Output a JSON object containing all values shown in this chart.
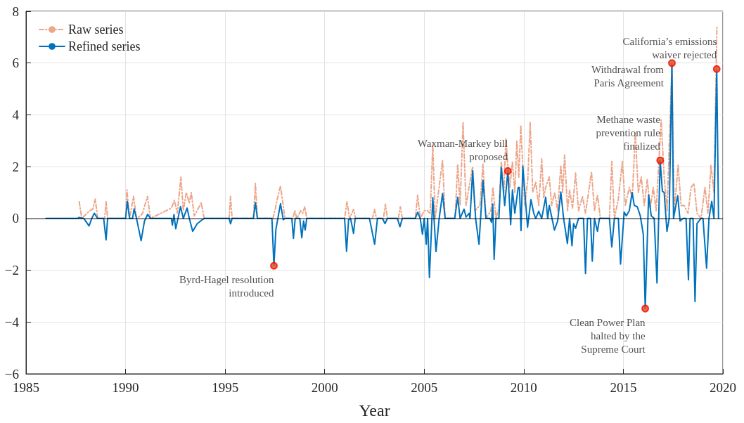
{
  "chart_data": {
    "type": "line",
    "xlabel": "Year",
    "xlim": [
      1985,
      2020
    ],
    "xticks": [
      1985,
      1990,
      1995,
      2000,
      2005,
      2010,
      2015,
      2020
    ],
    "ylim": [
      -6,
      8
    ],
    "yticks": [
      -6,
      -4,
      -2,
      0,
      2,
      4,
      6,
      8
    ],
    "grid": true,
    "legend": "top left",
    "marker": "none",
    "ref_lines": [
      {
        "axis": "y",
        "value": 0,
        "label": null,
        "color": "#000000"
      }
    ],
    "series": [
      {
        "name": "Raw series",
        "color": "#eca68a",
        "line_style": "dashdot",
        "x": [
          1987.67,
          1987.8,
          1988.2,
          1988.35,
          1988.48,
          1988.6,
          1988.95,
          1989.02,
          1989.1,
          1990.0,
          1990.07,
          1990.2,
          1990.4,
          1990.55,
          1990.75,
          1990.85,
          1991.1,
          1991.25,
          1992.3,
          1992.45,
          1992.6,
          1992.78,
          1992.9,
          1993.05,
          1993.2,
          1993.3,
          1993.45,
          1993.8,
          1993.95,
          1995.2,
          1995.27,
          1995.35,
          1996.42,
          1996.52,
          1996.62,
          1997.4,
          1997.5,
          1997.62,
          1997.78,
          1997.9,
          1998.0,
          1998.4,
          1998.5,
          1998.6,
          1998.8,
          1998.9,
          1999.0,
          1999.1,
          2001.0,
          2001.12,
          2001.25,
          2001.45,
          2001.55,
          2002.4,
          2002.5,
          2002.6,
          2002.95,
          2003.05,
          2003.15,
          2003.7,
          2003.8,
          2003.9,
          2004.55,
          2004.67,
          2004.8,
          2005.0,
          2005.15,
          2005.3,
          2005.43,
          2005.55,
          2005.92,
          2006.05,
          2006.55,
          2006.68,
          2006.8,
          2006.95,
          2007.1,
          2007.25,
          2007.43,
          2007.55,
          2007.8,
          2007.95,
          2008.1,
          2008.35,
          2008.45,
          2008.6,
          2008.75,
          2008.87,
          2009.0,
          2009.1,
          2009.2,
          2009.3,
          2009.43,
          2009.55,
          2009.65,
          2009.75,
          2009.85,
          2009.95,
          2010.05,
          2010.2,
          2010.32,
          2010.45,
          2010.6,
          2010.75,
          2010.9,
          2011.0,
          2011.1,
          2011.28,
          2011.4,
          2011.55,
          2011.7,
          2011.86,
          2011.95,
          2012.05,
          2012.2,
          2012.3,
          2012.45,
          2012.6,
          2012.75,
          2012.95,
          2013.1,
          2013.4,
          2013.55,
          2013.7,
          2013.85,
          2014.3,
          2014.42,
          2014.55,
          2014.75,
          2014.95,
          2015.1,
          2015.3,
          2015.45,
          2015.6,
          2015.75,
          2015.9,
          2016.05,
          2016.2,
          2016.35,
          2016.5,
          2016.65,
          2016.9,
          2017.05,
          2017.2,
          2017.44,
          2017.55,
          2017.75,
          2017.9,
          2018.05,
          2018.25,
          2018.4,
          2018.55,
          2018.7,
          2018.9,
          2019.1,
          2019.25,
          2019.4,
          2019.55,
          2019.7
        ],
        "values": [
          0.65,
          0,
          0.3,
          0.35,
          0.75,
          0,
          0,
          0.65,
          0,
          0,
          1.1,
          0,
          0.85,
          0,
          0.1,
          0.2,
          0.85,
          0,
          0.4,
          0.7,
          0.2,
          1.6,
          0.3,
          1.0,
          0.6,
          1.0,
          0.1,
          0.6,
          0,
          0,
          0.85,
          0,
          0,
          1.35,
          0,
          0,
          0.3,
          0.75,
          1.25,
          0.6,
          0,
          0,
          0.3,
          0,
          0.3,
          0.2,
          0.45,
          0,
          0,
          0.65,
          0,
          0.35,
          0,
          0,
          0.35,
          0,
          0,
          0.55,
          0,
          0,
          0.45,
          0,
          0,
          0.9,
          0,
          0.3,
          0.3,
          0.2,
          2.85,
          0,
          2.25,
          0,
          0,
          2.1,
          0.5,
          3.7,
          0.5,
          1.2,
          2.0,
          0.3,
          0.5,
          2.1,
          0,
          0.3,
          1.2,
          0,
          0.4,
          2.2,
          1.0,
          3.1,
          2.0,
          1.2,
          2.2,
          1.0,
          3.0,
          1.6,
          3.6,
          2.0,
          0.5,
          1.5,
          3.7,
          1.0,
          1.4,
          0.5,
          2.3,
          0.8,
          1.2,
          1.6,
          0.5,
          1.0,
          0.3,
          2.05,
          1.0,
          2.45,
          0.3,
          1.1,
          0.4,
          1.75,
          0.3,
          0.85,
          0.2,
          1.8,
          0.3,
          0.9,
          0,
          0,
          2.2,
          0,
          0.75,
          2.2,
          0.5,
          1.2,
          0.8,
          3.3,
          1.0,
          1.6,
          0.5,
          1.5,
          0.4,
          1.2,
          0.3,
          3.8,
          1.6,
          0.3,
          6.0,
          0.2,
          2.05,
          0.5,
          0.5,
          0.2,
          1.2,
          1.35,
          0.2,
          0,
          1.2,
          0.2,
          2.05,
          1.0,
          7.4
        ]
      },
      {
        "name": "Refined series",
        "color": "#0072bd",
        "line_style": "solid",
        "x": [
          1986.0,
          1987.6,
          1987.67,
          1987.9,
          1988.17,
          1988.3,
          1988.43,
          1988.6,
          1988.9,
          1989.02,
          1989.1,
          1990.0,
          1990.09,
          1990.2,
          1990.35,
          1990.43,
          1990.55,
          1990.78,
          1990.95,
          1991.11,
          1991.25,
          1992.3,
          1992.35,
          1992.43,
          1992.52,
          1992.76,
          1992.9,
          1993.09,
          1993.2,
          1993.37,
          1993.6,
          1993.85,
          1993.95,
          1995.2,
          1995.27,
          1995.35,
          1996.42,
          1996.52,
          1996.62,
          1997.35,
          1997.45,
          1997.55,
          1997.78,
          1997.92,
          1998.0,
          1998.35,
          1998.43,
          1998.52,
          1998.75,
          1998.85,
          1998.94,
          1999.02,
          1999.1,
          2001.0,
          2001.1,
          2001.2,
          2001.3,
          2001.45,
          2001.53,
          2002.25,
          2002.51,
          2002.65,
          2002.9,
          2003.03,
          2003.15,
          2003.65,
          2003.78,
          2003.9,
          2004.55,
          2004.67,
          2004.8,
          2004.91,
          2005.0,
          2005.1,
          2005.17,
          2005.26,
          2005.43,
          2005.59,
          2005.75,
          2005.92,
          2006.05,
          2006.53,
          2006.68,
          2006.8,
          2007.0,
          2007.1,
          2007.25,
          2007.3,
          2007.43,
          2007.58,
          2007.75,
          2007.95,
          2008.1,
          2008.3,
          2008.38,
          2008.44,
          2008.51,
          2008.6,
          2008.75,
          2008.87,
          2009.04,
          2009.2,
          2009.34,
          2009.43,
          2009.55,
          2009.72,
          2009.78,
          2009.86,
          2009.95,
          2010.19,
          2010.36,
          2010.5,
          2010.6,
          2010.75,
          2010.9,
          2011.1,
          2011.2,
          2011.28,
          2011.54,
          2011.7,
          2011.86,
          2012.0,
          2012.19,
          2012.3,
          2012.42,
          2012.5,
          2012.6,
          2012.75,
          2013.0,
          2013.1,
          2013.2,
          2013.35,
          2013.44,
          2013.55,
          2013.7,
          2013.8,
          2014.3,
          2014.42,
          2014.55,
          2014.75,
          2014.86,
          2015.04,
          2015.15,
          2015.3,
          2015.44,
          2015.55,
          2015.7,
          2015.85,
          2016.0,
          2016.1,
          2016.27,
          2016.4,
          2016.55,
          2016.69,
          2016.85,
          2016.96,
          2017.05,
          2017.19,
          2017.3,
          2017.44,
          2017.52,
          2017.73,
          2017.85,
          2018.0,
          2018.15,
          2018.27,
          2018.35,
          2018.5,
          2018.6,
          2018.7,
          2018.9,
          2019.0,
          2019.18,
          2019.3,
          2019.44,
          2019.55,
          2019.69,
          2019.78
        ],
        "values": [
          0,
          0,
          0.04,
          0,
          -0.29,
          0,
          0.2,
          0,
          0,
          -0.83,
          0,
          0,
          0.66,
          0,
          0,
          0.37,
          0,
          -0.86,
          -0.1,
          0.16,
          0,
          0,
          -0.26,
          0.15,
          -0.4,
          0.46,
          0,
          0.4,
          0,
          -0.5,
          -0.2,
          -0.05,
          0,
          0,
          -0.21,
          0,
          0,
          0.61,
          0,
          0,
          -1.83,
          -0.42,
          0.57,
          -0.05,
          0,
          0,
          -0.77,
          0,
          0,
          -0.75,
          -0.1,
          -0.45,
          0,
          0,
          -1.27,
          -0.05,
          0,
          -0.58,
          0,
          0,
          -1.0,
          0,
          0,
          -0.2,
          0,
          0,
          -0.32,
          0,
          0,
          0.24,
          0,
          -0.61,
          0,
          -1.0,
          0,
          -2.28,
          0.8,
          -1.28,
          0,
          0.96,
          0,
          0,
          0.82,
          0,
          0.36,
          0.05,
          0.2,
          0,
          1.84,
          0,
          -1.0,
          1.47,
          0,
          0,
          -0.15,
          0.56,
          -1.58,
          0,
          0,
          1.97,
          0.5,
          1.83,
          -0.24,
          1.1,
          0.2,
          1.2,
          1.2,
          -0.47,
          2.02,
          -0.34,
          0.73,
          0.2,
          0,
          0.28,
          0,
          0.82,
          0,
          0.5,
          -0.45,
          -0.1,
          1.02,
          0,
          -0.97,
          0,
          -1.05,
          -0.2,
          -0.38,
          0,
          0,
          -2.13,
          0,
          0,
          -1.65,
          0,
          -0.5,
          0,
          0,
          -1.1,
          0,
          0,
          -1.76,
          0.25,
          0.1,
          0.3,
          1.0,
          0.5,
          0.45,
          0.1,
          -0.6,
          -3.48,
          0.91,
          0.1,
          0,
          -2.49,
          2.24,
          1.05,
          1.0,
          -0.5,
          0,
          6.0,
          0,
          0.88,
          -0.1,
          0,
          0,
          -2.37,
          0,
          0,
          -3.21,
          -0.2,
          0,
          0,
          -1.92,
          0,
          0.66,
          0,
          5.77,
          0
        ]
      }
    ],
    "annotations": [
      {
        "text": "Byrd-Hagel resolution\nintroduced",
        "x": 1997.45,
        "y": -1.83
      },
      {
        "text": "Waxman-Markey bill\nproposed",
        "x": 2009.2,
        "y": 1.83
      },
      {
        "text": "Clean Power Plan\nhalted by the\nSupreme Court",
        "x": 2016.1,
        "y": -3.48
      },
      {
        "text": "Methane waste\nprevention rule\nfinalized",
        "x": 2016.85,
        "y": 2.24
      },
      {
        "text": "Withdrawal from\nParis Agreement",
        "x": 2017.44,
        "y": 6.0
      },
      {
        "text": "California’s emissions\nwaiver rejected",
        "x": 2019.69,
        "y": 5.77
      }
    ]
  }
}
